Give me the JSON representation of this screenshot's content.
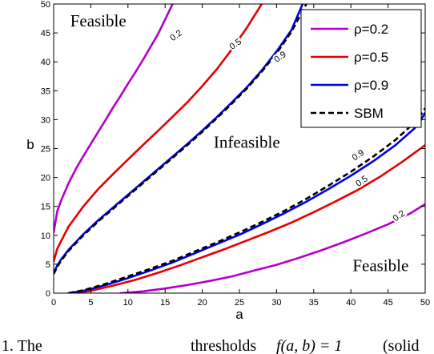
{
  "chart_data": {
    "type": "line",
    "title": "",
    "xlabel": "a",
    "ylabel": "b",
    "xlim": [
      0,
      50
    ],
    "ylim": [
      0,
      50
    ],
    "xticks": [
      0,
      5,
      10,
      15,
      20,
      25,
      30,
      35,
      40,
      45,
      50
    ],
    "yticks": [
      0,
      5,
      10,
      15,
      20,
      25,
      30,
      35,
      40,
      45,
      50
    ],
    "legend_position": "top-right",
    "grid": false,
    "regions": [
      {
        "text": "Feasible",
        "x": 6,
        "y": 46.8
      },
      {
        "text": "Infeasible",
        "x": 26,
        "y": 25.8
      },
      {
        "text": "Feasible",
        "x": 44,
        "y": 4.5
      }
    ],
    "series": [
      {
        "name": "ρ=0.2",
        "color": "#b400c8",
        "dash": "solid",
        "upper": {
          "x": [
            0,
            0.5,
            1,
            2,
            3,
            4,
            5,
            6,
            7,
            8,
            9,
            10,
            11,
            12,
            13,
            14,
            15,
            16
          ],
          "y": [
            10.5,
            14.2,
            16.0,
            19.0,
            21.5,
            23.7,
            25.8,
            27.9,
            30.0,
            32.1,
            34.1,
            36.2,
            38.2,
            40.3,
            42.5,
            44.7,
            47.3,
            50.0
          ]
        },
        "lower": {
          "x": [
            9,
            12,
            15,
            18,
            21,
            24,
            27,
            30,
            33,
            36,
            39,
            42,
            45,
            48,
            50
          ],
          "y": [
            0,
            0.3,
            0.8,
            1.4,
            2.1,
            2.9,
            3.9,
            4.9,
            6.1,
            7.4,
            8.8,
            10.3,
            11.9,
            13.8,
            15.4
          ]
        },
        "contour_labels": [
          {
            "text": "0.2",
            "x": 16.5,
            "y": 44.5
          },
          {
            "text": "0.2",
            "x": 46.5,
            "y": 13.3
          }
        ]
      },
      {
        "name": "ρ=0.5",
        "color": "#e60000",
        "dash": "solid",
        "upper": {
          "x": [
            0,
            0.5,
            1,
            2,
            4,
            6,
            8,
            10,
            12,
            14,
            16,
            18,
            20,
            22,
            24,
            26,
            28
          ],
          "y": [
            5.5,
            7.7,
            9.0,
            11.5,
            15.0,
            18.0,
            20.6,
            23.1,
            25.6,
            28.0,
            30.5,
            33.0,
            35.8,
            38.8,
            42.2,
            45.9,
            50.0
          ]
        },
        "lower": {
          "x": [
            3,
            5,
            8,
            11,
            14,
            17,
            20,
            23,
            26,
            29,
            32,
            35,
            38,
            41,
            44,
            47,
            50
          ],
          "y": [
            0,
            0.4,
            1.3,
            2.3,
            3.5,
            4.8,
            6.2,
            7.6,
            9.1,
            10.6,
            12.2,
            14.0,
            15.9,
            17.9,
            20.2,
            22.8,
            25.6
          ]
        },
        "contour_labels": [
          {
            "text": "0.5",
            "x": 24.5,
            "y": 43.0
          },
          {
            "text": "0.5",
            "x": 41.5,
            "y": 19.3
          }
        ]
      },
      {
        "name": "ρ=0.9",
        "color": "#0000e6",
        "dash": "solid",
        "upper": {
          "x": [
            0,
            0.5,
            1,
            2,
            4,
            6,
            8,
            10,
            12,
            14,
            16,
            18,
            20,
            22,
            24,
            26,
            28,
            30,
            32,
            33.5
          ],
          "y": [
            3.5,
            4.8,
            5.8,
            7.5,
            10.2,
            12.6,
            14.8,
            17.0,
            19.2,
            21.4,
            23.6,
            25.8,
            28.1,
            30.5,
            33.0,
            35.6,
            38.5,
            41.8,
            45.5,
            50.0
          ]
        },
        "lower": {
          "x": [
            2,
            4,
            7,
            10,
            13,
            16,
            19,
            22,
            25,
            28,
            31,
            34,
            37,
            40,
            43,
            46,
            49,
            50
          ],
          "y": [
            0,
            0.4,
            1.4,
            2.6,
            3.9,
            5.3,
            6.9,
            8.5,
            10.1,
            11.9,
            13.8,
            15.8,
            18.0,
            20.3,
            22.8,
            25.6,
            29.0,
            31.2
          ]
        },
        "contour_labels": [
          {
            "text": "0.9",
            "x": 30.5,
            "y": 40.8
          },
          {
            "text": "0.9",
            "x": 41.0,
            "y": 23.8
          }
        ]
      },
      {
        "name": "SBM",
        "color": "#000000",
        "dash": "dashed",
        "upper": {
          "x": [
            0,
            0.5,
            1,
            2,
            4,
            6,
            8,
            10,
            12,
            14,
            16,
            18,
            20,
            22,
            24,
            26,
            28,
            30,
            32,
            34
          ],
          "y": [
            3.3,
            4.6,
            5.6,
            7.3,
            10.0,
            12.4,
            14.6,
            16.8,
            19.0,
            21.2,
            23.4,
            25.6,
            27.9,
            30.3,
            32.8,
            35.4,
            38.3,
            41.5,
            45.2,
            50.0
          ]
        },
        "lower": {
          "x": [
            2,
            4,
            7,
            10,
            13,
            16,
            19,
            22,
            25,
            28,
            31,
            34,
            37,
            40,
            43,
            46,
            49,
            50
          ],
          "y": [
            0,
            0.5,
            1.6,
            2.9,
            4.2,
            5.6,
            7.2,
            8.8,
            10.5,
            12.3,
            14.2,
            16.3,
            18.6,
            21.0,
            23.6,
            26.5,
            30.0,
            32.0
          ]
        }
      }
    ]
  },
  "caption": {
    "prefix": "1.  The",
    "middle": "thresholds",
    "formula": "f(a, b) = 1",
    "suffix": "(solid"
  }
}
